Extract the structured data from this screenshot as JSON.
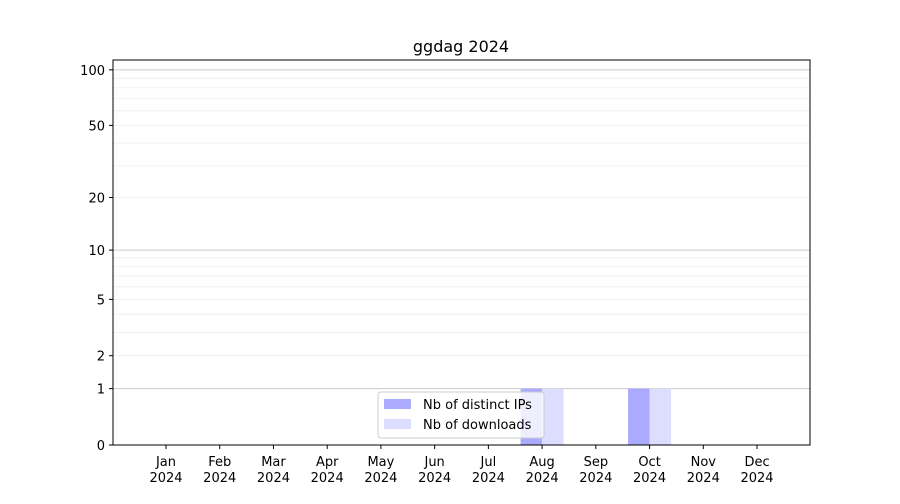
{
  "chart_data": {
    "type": "bar",
    "title": "ggdag 2024",
    "xlabel": "",
    "ylabel": "",
    "y_scale": "log(y+1)",
    "ylim": [
      0,
      113
    ],
    "y_ticks": [
      0,
      1,
      2,
      5,
      10,
      20,
      50,
      100
    ],
    "y_tick_labels": [
      "0",
      "1",
      "2",
      "5",
      "10",
      "20",
      "50",
      "100"
    ],
    "categories": [
      "Jan\n2024",
      "Feb\n2024",
      "Mar\n2024",
      "Apr\n2024",
      "May\n2024",
      "Jun\n2024",
      "Jul\n2024",
      "Aug\n2024",
      "Sep\n2024",
      "Oct\n2024",
      "Nov\n2024",
      "Dec\n2024"
    ],
    "x_tick_labels": [
      [
        "Jan",
        "2024"
      ],
      [
        "Feb",
        "2024"
      ],
      [
        "Mar",
        "2024"
      ],
      [
        "Apr",
        "2024"
      ],
      [
        "May",
        "2024"
      ],
      [
        "Jun",
        "2024"
      ],
      [
        "Jul",
        "2024"
      ],
      [
        "Aug",
        "2024"
      ],
      [
        "Sep",
        "2024"
      ],
      [
        "Oct",
        "2024"
      ],
      [
        "Nov",
        "2024"
      ],
      [
        "Dec",
        "2024"
      ]
    ],
    "series": [
      {
        "name": "Nb of distinct IPs",
        "color": "#aaaaff",
        "values": [
          0,
          0,
          0,
          0,
          0,
          0,
          0,
          1,
          0,
          1,
          0,
          0
        ]
      },
      {
        "name": "Nb of downloads",
        "color": "#ddddff",
        "values": [
          0,
          0,
          0,
          0,
          0,
          0,
          0,
          1,
          0,
          1,
          0,
          0
        ]
      }
    ],
    "grid": "y major and minor",
    "legend_placement": "lower center"
  }
}
